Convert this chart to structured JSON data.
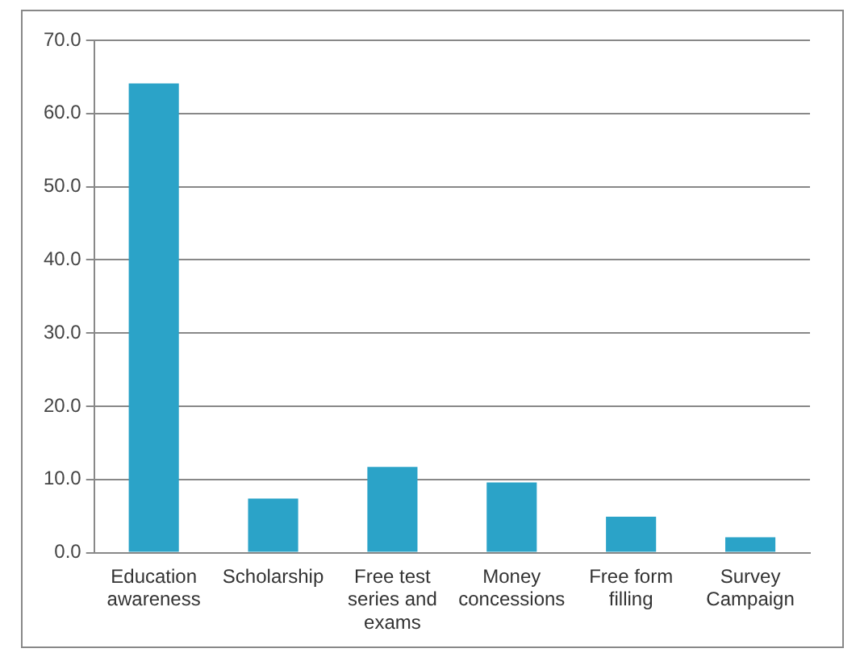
{
  "chart_data": {
    "type": "bar",
    "categories": [
      "Education awareness",
      "Scholarship",
      "Free test series and exams",
      "Money concessions",
      "Free form filling",
      "Survey Campaign"
    ],
    "values": [
      64.1,
      7.4,
      11.7,
      9.6,
      4.9,
      2.1
    ],
    "color": "#2ba3c8",
    "ylim": [
      0,
      70
    ],
    "yticks": [
      {
        "value": 0,
        "label": "0.0"
      },
      {
        "value": 10,
        "label": "10.0"
      },
      {
        "value": 20,
        "label": "20.0"
      },
      {
        "value": 30,
        "label": "30.0"
      },
      {
        "value": 40,
        "label": "40.0"
      },
      {
        "value": 50,
        "label": "50.0"
      },
      {
        "value": 60,
        "label": "60.0"
      },
      {
        "value": 70,
        "label": "70.0"
      }
    ],
    "grid": "y"
  }
}
